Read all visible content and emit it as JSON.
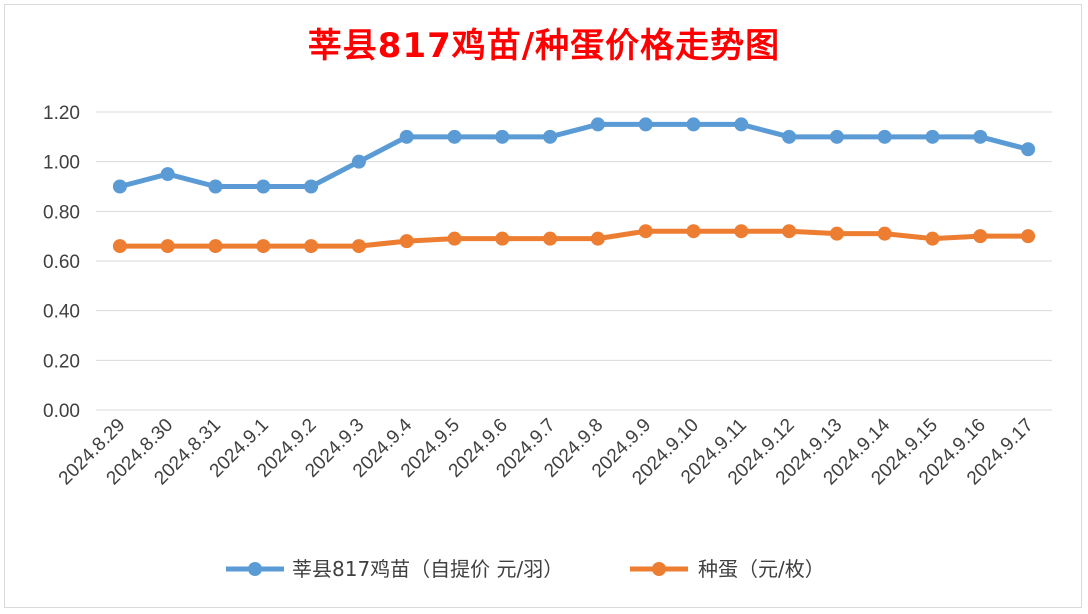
{
  "chart_data": {
    "type": "line",
    "title": "莘县817鸡苗/种蛋价格走势图",
    "categories": [
      "2024.8.29",
      "2024.8.30",
      "2024.8.31",
      "2024.9.1",
      "2024.9.2",
      "2024.9.3",
      "2024.9.4",
      "2024.9.5",
      "2024.9.6",
      "2024.9.7",
      "2024.9.8",
      "2024.9.9",
      "2024.9.10",
      "2024.9.11",
      "2024.9.12",
      "2024.9.13",
      "2024.9.14",
      "2024.9.15",
      "2024.9.16",
      "2024.9.17"
    ],
    "series": [
      {
        "name": "莘县817鸡苗（自提价 元/羽）",
        "color": "#5b9bd5",
        "values": [
          0.9,
          0.95,
          0.9,
          0.9,
          0.9,
          1.0,
          1.1,
          1.1,
          1.1,
          1.1,
          1.15,
          1.15,
          1.15,
          1.15,
          1.1,
          1.1,
          1.1,
          1.1,
          1.1,
          1.05
        ]
      },
      {
        "name": "种蛋（元/枚）",
        "color": "#ed7d31",
        "values": [
          0.66,
          0.66,
          0.66,
          0.66,
          0.66,
          0.66,
          0.68,
          0.69,
          0.69,
          0.69,
          0.69,
          0.72,
          0.72,
          0.72,
          0.72,
          0.71,
          0.71,
          0.69,
          0.7,
          0.7
        ]
      }
    ],
    "y_ticks": [
      "0.00",
      "0.20",
      "0.40",
      "0.60",
      "0.80",
      "1.00",
      "1.20"
    ],
    "ylim": [
      0,
      1.2
    ],
    "grid": true,
    "legend_position": "bottom"
  }
}
